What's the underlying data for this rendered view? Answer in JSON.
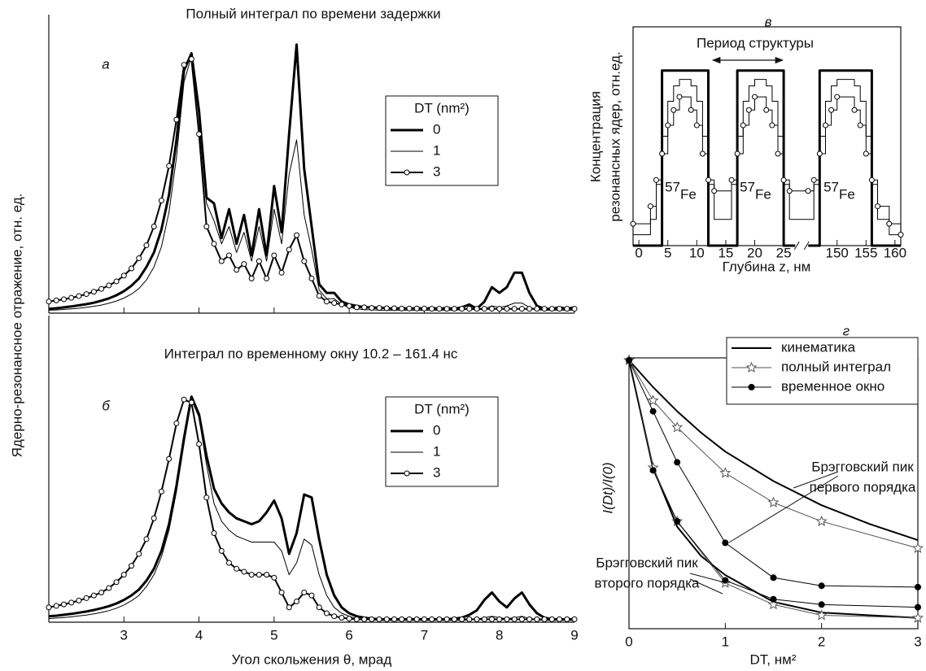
{
  "chart_data": [
    {
      "type": "line",
      "title": "Полный интеграл по времени задержки",
      "panel_label": "а",
      "ylabel": "Ядерно-резонансное отражение,  отн. ед.",
      "legend_title": "DT (nm²)",
      "xlim": [
        2,
        9
      ],
      "ylim": [
        0,
        1
      ],
      "xticks": [
        3,
        4,
        5,
        6,
        7,
        8,
        9
      ],
      "x_tick_labels": false,
      "x": [
        2,
        2.1,
        2.2,
        2.3,
        2.4,
        2.5,
        2.6,
        2.7,
        2.8,
        2.9,
        3,
        3.1,
        3.2,
        3.3,
        3.4,
        3.5,
        3.6,
        3.7,
        3.8,
        3.9,
        4,
        4.1,
        4.2,
        4.3,
        4.4,
        4.5,
        4.6,
        4.7,
        4.8,
        4.9,
        5,
        5.1,
        5.2,
        5.3,
        5.4,
        5.5,
        5.6,
        5.7,
        5.8,
        5.9,
        6,
        6.1,
        6.2,
        6.3,
        6.4,
        6.5,
        6.6,
        6.7,
        6.8,
        6.9,
        7,
        7.1,
        7.2,
        7.3,
        7.4,
        7.5,
        7.6,
        7.7,
        7.8,
        7.9,
        8,
        8.1,
        8.2,
        8.3,
        8.4,
        8.5,
        8.6,
        8.7,
        8.8,
        8.9,
        9
      ],
      "series": [
        {
          "name": "0",
          "color": "#000000",
          "width": 3,
          "values": [
            0.015,
            0.017,
            0.02,
            0.023,
            0.027,
            0.031,
            0.036,
            0.043,
            0.051,
            0.062,
            0.076,
            0.095,
            0.12,
            0.16,
            0.21,
            0.29,
            0.41,
            0.6,
            0.84,
            0.9,
            0.7,
            0.4,
            0.38,
            0.26,
            0.36,
            0.24,
            0.34,
            0.2,
            0.36,
            0.2,
            0.44,
            0.28,
            0.62,
            0.93,
            0.5,
            0.3,
            0.1,
            0.07,
            0.07,
            0.04,
            0.03,
            0.025,
            0.02,
            0.02,
            0.018,
            0.018,
            0.015,
            0.018,
            0.015,
            0.018,
            0.015,
            0.018,
            0.015,
            0.018,
            0.015,
            0.02,
            0.03,
            0.015,
            0.04,
            0.09,
            0.07,
            0.09,
            0.14,
            0.14,
            0.07,
            0.025,
            0.015,
            0.015,
            0.02,
            0.015,
            0.02
          ]
        },
        {
          "name": "1",
          "color": "#000000",
          "width": 1,
          "values": [
            0.01,
            0.011,
            0.013,
            0.015,
            0.017,
            0.02,
            0.024,
            0.028,
            0.034,
            0.042,
            0.052,
            0.066,
            0.085,
            0.115,
            0.16,
            0.23,
            0.35,
            0.54,
            0.8,
            0.89,
            0.68,
            0.38,
            0.32,
            0.24,
            0.3,
            0.21,
            0.28,
            0.18,
            0.3,
            0.18,
            0.36,
            0.24,
            0.48,
            0.6,
            0.34,
            0.22,
            0.08,
            0.05,
            0.05,
            0.03,
            0.02,
            0.015,
            0.012,
            0.012,
            0.01,
            0.01,
            0.01,
            0.01,
            0.01,
            0.01,
            0.01,
            0.01,
            0.01,
            0.01,
            0.01,
            0.012,
            0.015,
            0.01,
            0.015,
            0.025,
            0.02,
            0.025,
            0.035,
            0.035,
            0.02,
            0.012,
            0.01,
            0.01,
            0.01,
            0.01,
            0.01
          ]
        },
        {
          "name": "3",
          "color": "#000000",
          "width": 2,
          "marker": "circle",
          "values": [
            0.04,
            0.044,
            0.048,
            0.053,
            0.059,
            0.066,
            0.074,
            0.084,
            0.096,
            0.11,
            0.13,
            0.155,
            0.19,
            0.235,
            0.3,
            0.39,
            0.51,
            0.67,
            0.86,
            0.88,
            0.62,
            0.3,
            0.24,
            0.18,
            0.2,
            0.15,
            0.17,
            0.12,
            0.18,
            0.12,
            0.2,
            0.14,
            0.22,
            0.27,
            0.18,
            0.12,
            0.06,
            0.04,
            0.035,
            0.03,
            0.025,
            0.02,
            0.02,
            0.018,
            0.018,
            0.017,
            0.017,
            0.016,
            0.016,
            0.016,
            0.016,
            0.015,
            0.015,
            0.015,
            0.015,
            0.015,
            0.015,
            0.015,
            0.015,
            0.015,
            0.015,
            0.015,
            0.015,
            0.015,
            0.015,
            0.015,
            0.015,
            0.015,
            0.015,
            0.015,
            0.015
          ]
        }
      ]
    },
    {
      "type": "line",
      "title": "Интеграл по временному окну 10.2 – 161.4 нс",
      "panel_label": "б",
      "xlabel": "Угол скольжения θ, мрад",
      "legend_title": "DT (nm²)",
      "xlim": [
        2,
        9
      ],
      "ylim": [
        0,
        1
      ],
      "xticks": [
        3,
        4,
        5,
        6,
        7,
        8,
        9
      ],
      "x": [
        2,
        2.1,
        2.2,
        2.3,
        2.4,
        2.5,
        2.6,
        2.7,
        2.8,
        2.9,
        3,
        3.1,
        3.2,
        3.3,
        3.4,
        3.5,
        3.6,
        3.7,
        3.8,
        3.9,
        4,
        4.1,
        4.2,
        4.3,
        4.4,
        4.5,
        4.6,
        4.7,
        4.8,
        4.9,
        5,
        5.1,
        5.2,
        5.3,
        5.4,
        5.5,
        5.6,
        5.7,
        5.8,
        5.9,
        6,
        6.1,
        6.2,
        6.3,
        6.4,
        6.5,
        6.6,
        6.7,
        6.8,
        6.9,
        7,
        7.1,
        7.2,
        7.3,
        7.4,
        7.5,
        7.6,
        7.7,
        7.8,
        7.9,
        8,
        8.1,
        8.2,
        8.3,
        8.4,
        8.5,
        8.6,
        8.7,
        8.8,
        8.9,
        9
      ],
      "series": [
        {
          "name": "0",
          "color": "#000000",
          "width": 3,
          "values": [
            0.02,
            0.022,
            0.025,
            0.028,
            0.032,
            0.036,
            0.041,
            0.047,
            0.054,
            0.063,
            0.075,
            0.09,
            0.11,
            0.14,
            0.18,
            0.24,
            0.33,
            0.46,
            0.62,
            0.76,
            0.7,
            0.56,
            0.45,
            0.4,
            0.37,
            0.35,
            0.34,
            0.33,
            0.34,
            0.37,
            0.41,
            0.35,
            0.23,
            0.3,
            0.43,
            0.42,
            0.28,
            0.16,
            0.09,
            0.05,
            0.03,
            0.02,
            0.015,
            0.012,
            0.01,
            0.01,
            0.01,
            0.01,
            0.01,
            0.01,
            0.01,
            0.01,
            0.01,
            0.01,
            0.012,
            0.015,
            0.025,
            0.04,
            0.075,
            0.1,
            0.07,
            0.05,
            0.08,
            0.1,
            0.06,
            0.03,
            0.015,
            0.01,
            0.01,
            0.01,
            0.01
          ]
        },
        {
          "name": "1",
          "color": "#000000",
          "width": 1,
          "values": [
            0.012,
            0.014,
            0.016,
            0.018,
            0.021,
            0.024,
            0.028,
            0.033,
            0.039,
            0.047,
            0.058,
            0.072,
            0.09,
            0.12,
            0.16,
            0.22,
            0.31,
            0.44,
            0.6,
            0.75,
            0.69,
            0.53,
            0.4,
            0.34,
            0.31,
            0.29,
            0.28,
            0.27,
            0.27,
            0.27,
            0.27,
            0.24,
            0.16,
            0.2,
            0.28,
            0.26,
            0.16,
            0.09,
            0.05,
            0.03,
            0.02,
            0.012,
            0.01,
            0.008,
            0.006,
            0.006,
            0.006,
            0.006,
            0.006,
            0.006,
            0.006,
            0.006,
            0.006,
            0.006,
            0.006,
            0.006,
            0.008,
            0.01,
            0.015,
            0.02,
            0.015,
            0.012,
            0.015,
            0.02,
            0.012,
            0.008,
            0.006,
            0.006,
            0.006,
            0.006,
            0.006
          ]
        },
        {
          "name": "3",
          "color": "#000000",
          "width": 2,
          "marker": "circle",
          "values": [
            0.05,
            0.055,
            0.06,
            0.066,
            0.073,
            0.081,
            0.09,
            0.1,
            0.115,
            0.135,
            0.16,
            0.19,
            0.23,
            0.28,
            0.35,
            0.44,
            0.55,
            0.67,
            0.75,
            0.74,
            0.6,
            0.42,
            0.3,
            0.24,
            0.2,
            0.18,
            0.17,
            0.16,
            0.16,
            0.16,
            0.15,
            0.1,
            0.05,
            0.07,
            0.1,
            0.09,
            0.05,
            0.03,
            0.02,
            0.015,
            0.012,
            0.01,
            0.01,
            0.01,
            0.01,
            0.01,
            0.01,
            0.01,
            0.01,
            0.01,
            0.01,
            0.01,
            0.01,
            0.01,
            0.01,
            0.01,
            0.01,
            0.01,
            0.01,
            0.01,
            0.01,
            0.01,
            0.01,
            0.01,
            0.01,
            0.01,
            0.01,
            0.01,
            0.01,
            0.01,
            0.01
          ]
        }
      ]
    },
    {
      "type": "step",
      "panel_label": "в",
      "xlabel": "Глубина z, нм",
      "ylabel": [
        "Концентрация",
        "резонансных ядер, отн.ед."
      ],
      "annotation": "Период структуры",
      "isotope": {
        "mass": "57",
        "element": "Fe"
      },
      "xlim": [
        -1,
        161
      ],
      "xbreak": [
        26,
        146
      ],
      "ylim": [
        0,
        1
      ],
      "frame": true,
      "xticks": [
        0,
        5,
        10,
        15,
        20,
        25,
        150,
        155,
        160
      ],
      "series": [
        {
          "color": "#000000",
          "width": 3,
          "x": [
            -1,
            4,
            12,
            17,
            25,
            147,
            156,
            161
          ],
          "values": [
            0,
            0.8,
            0,
            0.8,
            0,
            0.8,
            0,
            0
          ]
        },
        {
          "color": "#000000",
          "width": 1,
          "x": [
            -1,
            2,
            3,
            4,
            5,
            6,
            7,
            9,
            10,
            11,
            12,
            13,
            16,
            17,
            18,
            19,
            20,
            22,
            23,
            24,
            25,
            26,
            145,
            146,
            147,
            148,
            149,
            150,
            153,
            154,
            155,
            156,
            157,
            159,
            161
          ],
          "values": [
            0.05,
            0.12,
            0.28,
            0.5,
            0.66,
            0.73,
            0.76,
            0.73,
            0.66,
            0.5,
            0.28,
            0.12,
            0.28,
            0.5,
            0.66,
            0.73,
            0.76,
            0.73,
            0.66,
            0.5,
            0.28,
            0.12,
            0.12,
            0.28,
            0.5,
            0.66,
            0.73,
            0.76,
            0.73,
            0.66,
            0.5,
            0.28,
            0.12,
            0.05,
            0.05
          ]
        },
        {
          "color": "#000000",
          "width": 1,
          "marker": "circle",
          "x": [
            -1,
            2,
            3,
            4,
            5,
            6,
            7,
            9,
            10,
            11,
            12,
            13,
            16,
            17,
            18,
            19,
            20,
            22,
            23,
            24,
            25,
            26,
            145,
            146,
            147,
            148,
            149,
            150,
            153,
            154,
            155,
            156,
            157,
            159,
            161
          ],
          "values": [
            0.1,
            0.18,
            0.3,
            0.42,
            0.55,
            0.62,
            0.68,
            0.62,
            0.55,
            0.42,
            0.3,
            0.25,
            0.3,
            0.42,
            0.55,
            0.62,
            0.68,
            0.62,
            0.55,
            0.42,
            0.3,
            0.25,
            0.25,
            0.3,
            0.42,
            0.55,
            0.62,
            0.68,
            0.62,
            0.55,
            0.42,
            0.3,
            0.18,
            0.1,
            0.05
          ]
        }
      ]
    },
    {
      "type": "line",
      "panel_label": "г",
      "xlabel": "DT,  нм²",
      "ylabel": "I(Dt)/I(0)",
      "xlim": [
        0,
        3
      ],
      "ylim": [
        0,
        1
      ],
      "xticks": [
        0,
        1,
        2,
        3
      ],
      "frame": true,
      "annotations": [
        {
          "text": [
            "Брэгговский пик",
            "первого порядка"
          ]
        },
        {
          "text": [
            "Брэгговский пик",
            "второго порядка"
          ]
        }
      ],
      "series": [
        {
          "name": "кинематика",
          "color": "#000000",
          "width": 2,
          "x": [
            0,
            0.25,
            0.5,
            0.75,
            1,
            1.5,
            2,
            2.5,
            3
          ],
          "values": [
            1,
            0.9,
            0.81,
            0.73,
            0.66,
            0.55,
            0.46,
            0.39,
            0.33
          ]
        },
        {
          "name": "полный интеграл",
          "color": "#555555",
          "width": 1,
          "marker": "star",
          "x": [
            0,
            0.25,
            0.5,
            1,
            1.5,
            2,
            3
          ],
          "values": [
            1,
            0.85,
            0.75,
            0.58,
            0.47,
            0.4,
            0.3
          ]
        },
        {
          "name": "временное окно",
          "color": "#000000",
          "width": 1,
          "marker": "dot",
          "x": [
            0,
            0.25,
            0.5,
            1,
            1.5,
            2,
            3
          ],
          "values": [
            1,
            0.81,
            0.62,
            0.32,
            0.19,
            0.16,
            0.155
          ]
        },
        {
          "color": "#000000",
          "width": 2,
          "x": [
            0,
            0.25,
            0.5,
            0.75,
            1,
            1.5,
            2,
            2.5,
            3
          ],
          "values": [
            1,
            0.6,
            0.38,
            0.27,
            0.2,
            0.1,
            0.06,
            0.05,
            0.04
          ]
        },
        {
          "color": "#555555",
          "width": 1,
          "marker": "star",
          "x": [
            0,
            0.25,
            0.5,
            1,
            1.5,
            2,
            3
          ],
          "values": [
            1,
            0.6,
            0.4,
            0.17,
            0.09,
            0.05,
            0.04
          ]
        },
        {
          "color": "#000000",
          "width": 1,
          "marker": "dot",
          "x": [
            0,
            0.25,
            0.5,
            1,
            1.5,
            2,
            3
          ],
          "values": [
            1,
            0.59,
            0.4,
            0.18,
            0.11,
            0.09,
            0.08
          ]
        }
      ]
    }
  ]
}
